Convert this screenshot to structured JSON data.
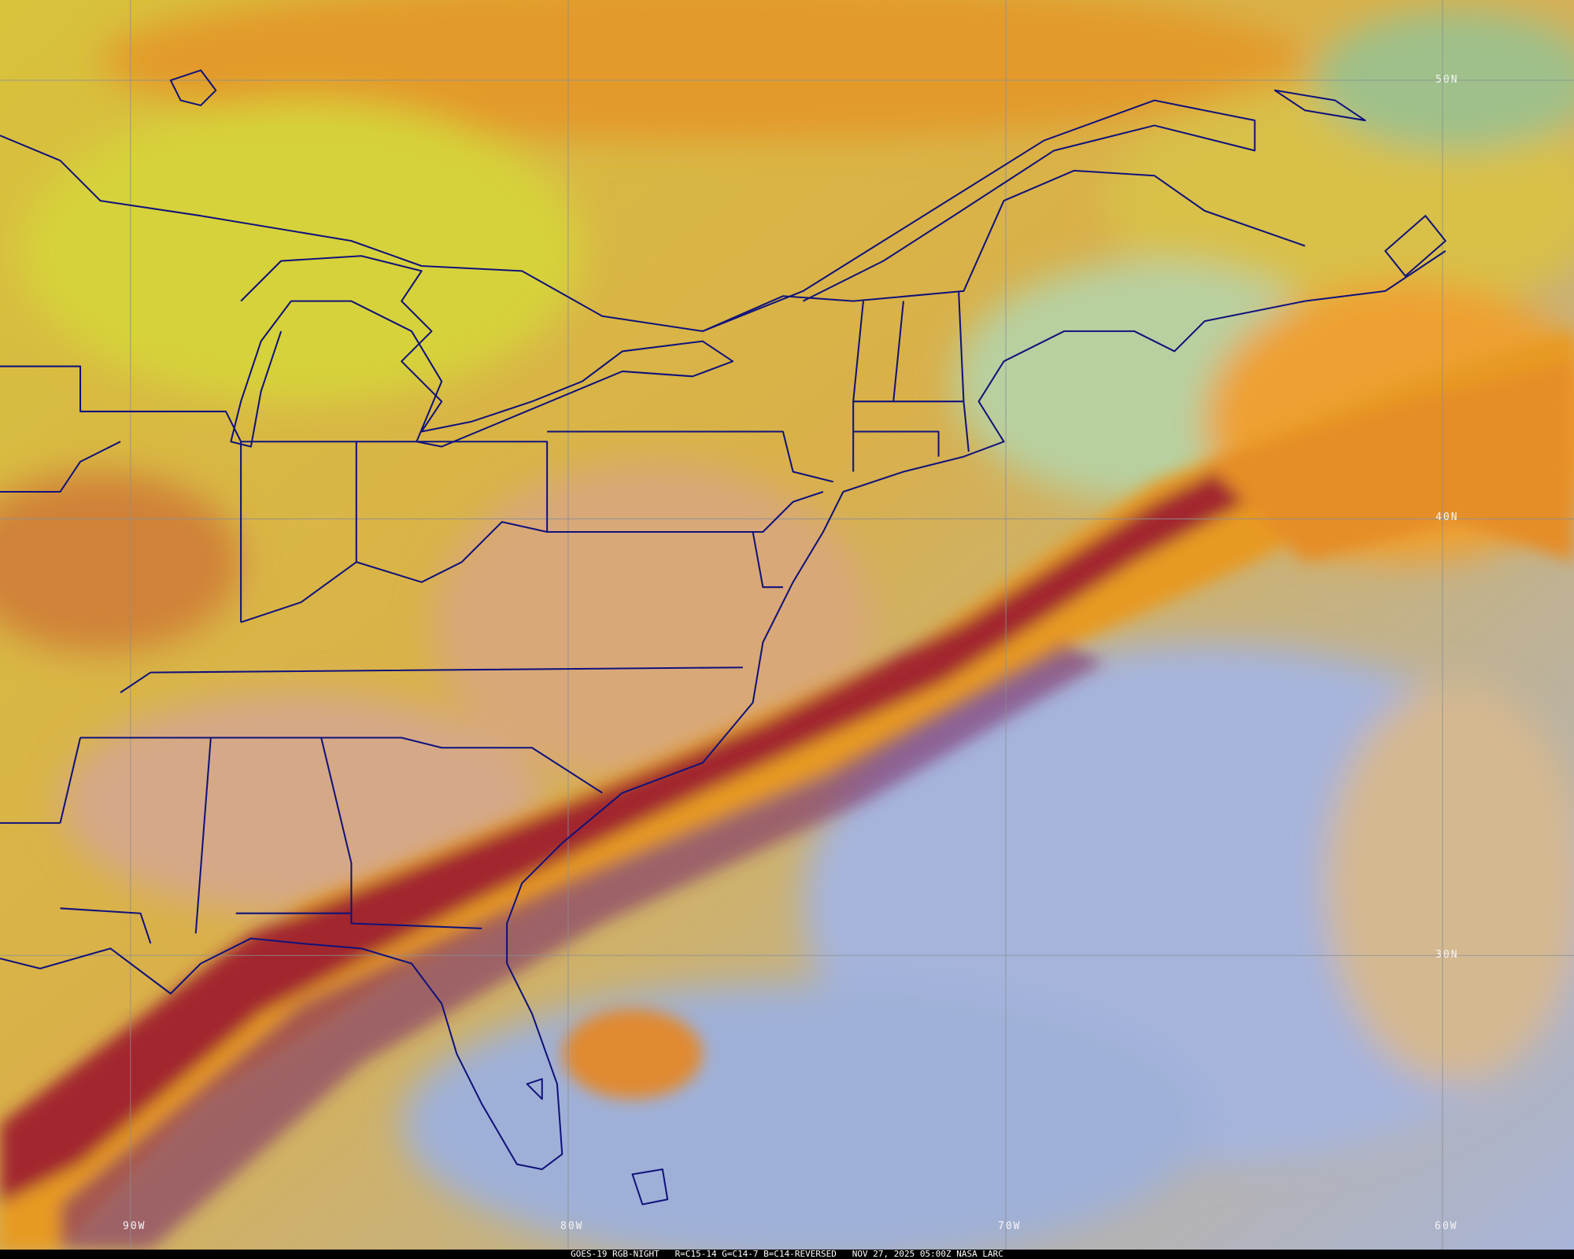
{
  "grid_labels": {
    "lon": [
      "90W",
      "80W",
      "70W",
      "60W"
    ],
    "lat": [
      "50N",
      "40N",
      "30N"
    ]
  },
  "caption": {
    "satellite_product": "GOES-19 RGB-NIGHT",
    "channels": "R=C15-14 G=C14-7 B=C14-REVERSED",
    "datetime": "NOV 27, 2025 05:00Z",
    "credit": "NASA LARC"
  },
  "colors": {
    "land_yellow": "#d9c43a",
    "cloud_orange": "#e89a2a",
    "front_red": "#a4262a",
    "ocean_lavender": "#9fb0d8",
    "border_navy": "#10127a"
  }
}
